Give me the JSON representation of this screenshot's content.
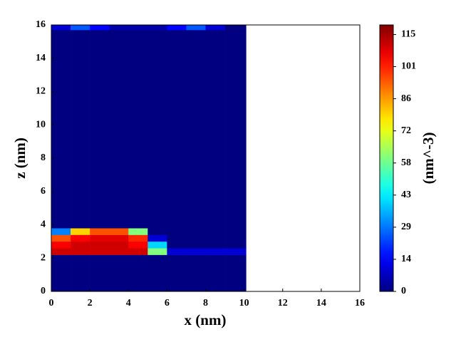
{
  "chart_data": {
    "type": "heatmap",
    "x_label": "x (nm)",
    "y_label": "z (nm)",
    "colorbar_label": "(nm^-3)",
    "colormap": "jet",
    "xbins": [
      0,
      1,
      2,
      3,
      4,
      5,
      6,
      7,
      8,
      9,
      10.1
    ],
    "ybins": [
      0,
      2.2,
      2.6,
      3.0,
      3.4,
      3.8,
      15.7,
      16
    ],
    "values": [
      [
        0,
        0,
        0,
        0,
        0,
        0,
        0,
        0,
        0,
        0
      ],
      [
        110,
        110,
        110,
        110,
        110,
        60,
        10,
        10,
        10,
        10
      ],
      [
        105,
        110,
        110,
        110,
        105,
        40,
        0,
        0,
        0,
        0
      ],
      [
        95,
        105,
        108,
        108,
        100,
        10,
        0,
        0,
        0,
        0
      ],
      [
        30,
        80,
        95,
        95,
        60,
        0,
        0,
        0,
        0,
        0
      ],
      [
        0,
        0,
        0,
        0,
        0,
        0,
        0,
        0,
        0,
        0
      ],
      [
        10,
        25,
        15,
        5,
        5,
        5,
        15,
        25,
        10,
        0
      ]
    ],
    "xlim": [
      0,
      16
    ],
    "xticks": [
      0,
      2,
      4,
      6,
      8,
      10,
      12,
      14,
      16
    ],
    "ylim": [
      0,
      16
    ],
    "yticks": [
      0,
      2,
      4,
      6,
      8,
      10,
      12,
      14,
      16
    ],
    "clim": [
      0,
      119.5
    ],
    "cticks": [
      0,
      {
        "value": 14.4,
        "label": "14"
      },
      {
        "value": 28.8,
        "label": "29"
      },
      {
        "value": 43.2,
        "label": "43"
      },
      {
        "value": 57.6,
        "label": "58"
      },
      72,
      {
        "value": 86.4,
        "label": "86"
      },
      {
        "value": 100.8,
        "label": "101"
      },
      {
        "value": 115.2,
        "label": "115"
      }
    ]
  }
}
